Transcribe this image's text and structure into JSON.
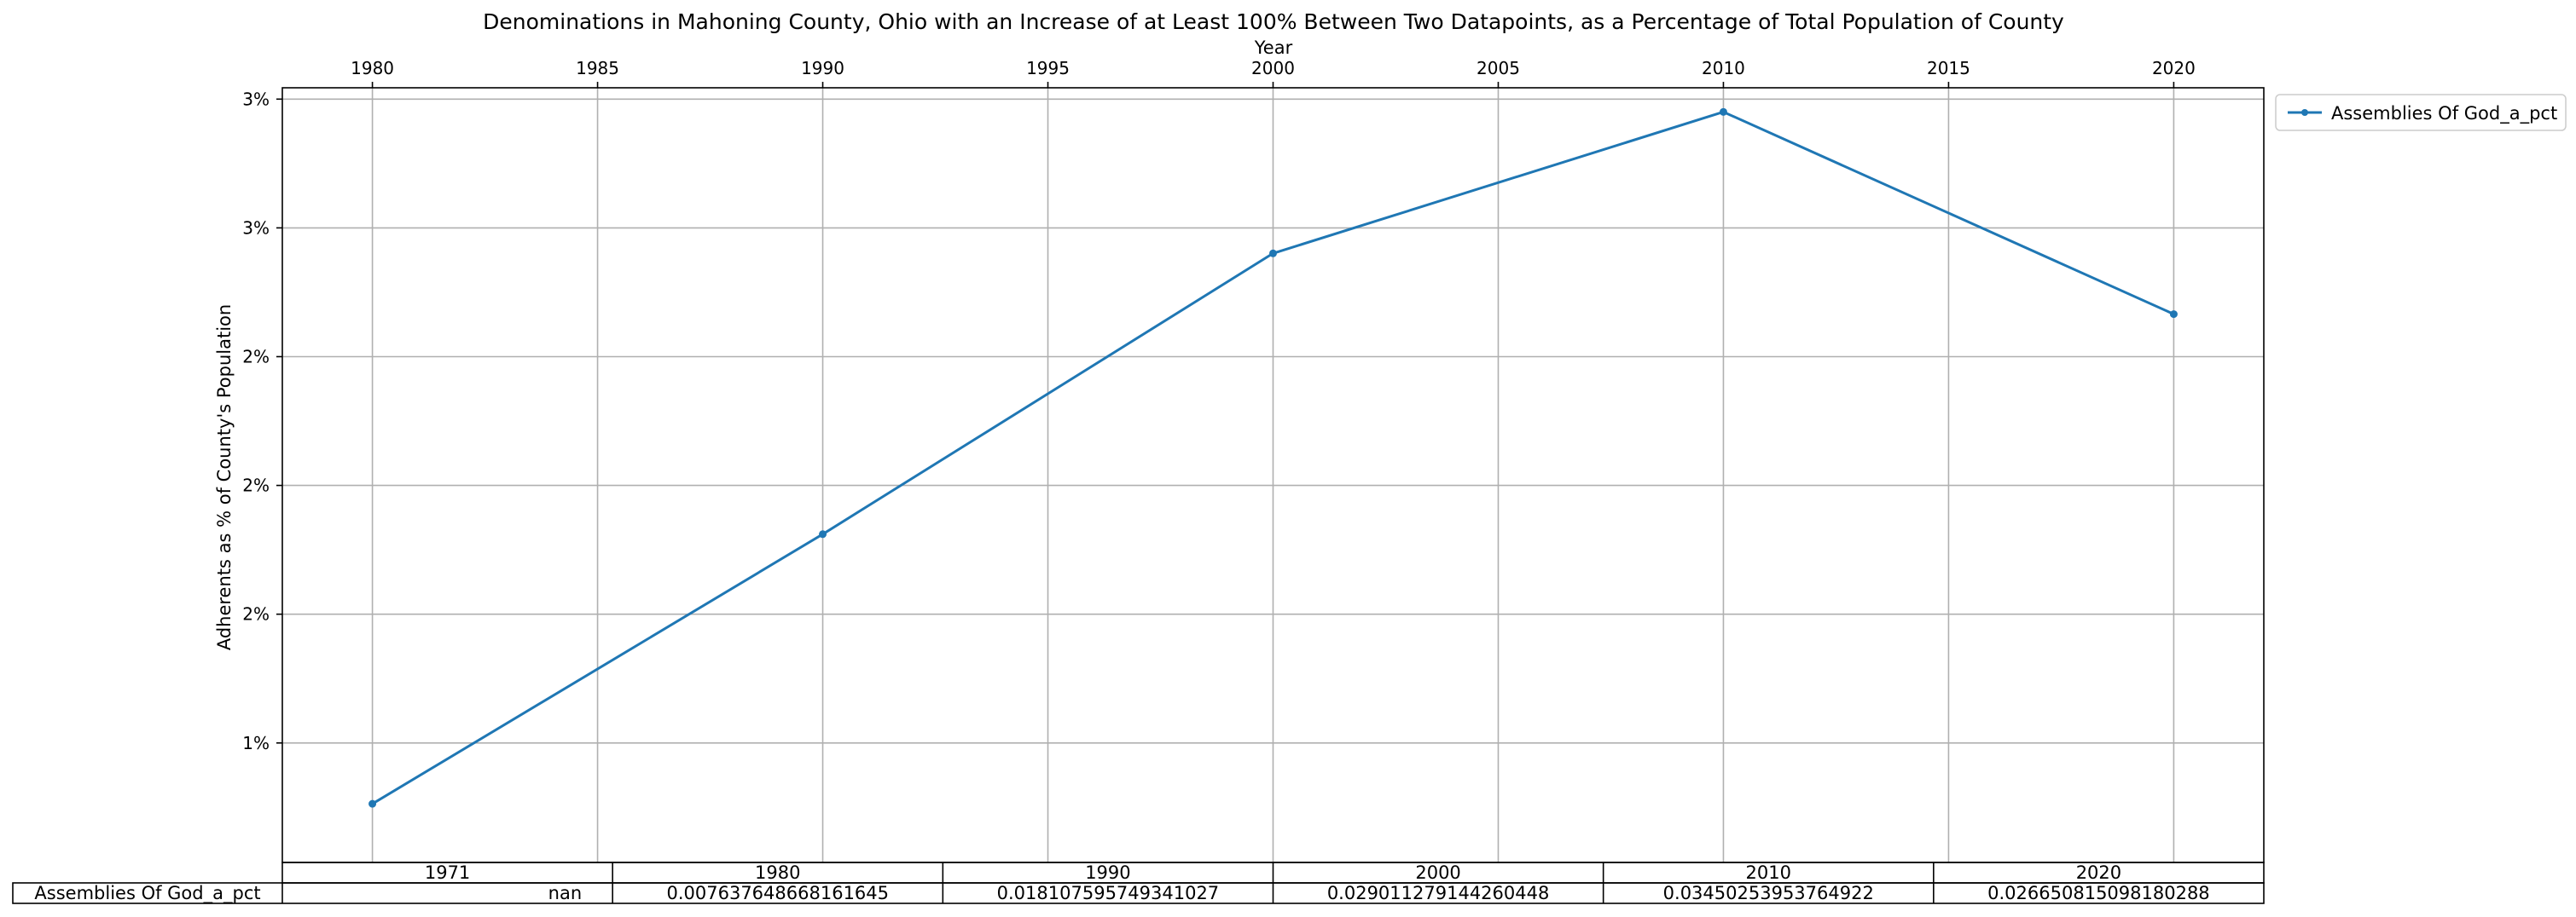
{
  "chart_data": {
    "type": "line",
    "title": "Denominations in Mahoning County, Ohio with an Increase of at Least 100% Between Two Datapoints, as a Percentage of Total Population of County",
    "xlabel": "Year",
    "ylabel": "Adherents as % of County's Population",
    "x_axis_position": "top",
    "x_ticks": [
      1980,
      1985,
      1990,
      1995,
      2000,
      2005,
      2010,
      2015,
      2020
    ],
    "xlim": [
      1978,
      2022
    ],
    "y_ticks": [
      0.01,
      0.015,
      0.02,
      0.025,
      0.03,
      0.035
    ],
    "y_tick_labels": [
      "1%",
      "2%",
      "2%",
      "2%",
      "3%",
      "3%"
    ],
    "ylim": [
      0.00536,
      0.03544
    ],
    "grid": true,
    "legend_placement": "outside upper right",
    "series": [
      {
        "name": "Assemblies Of God_a_pct",
        "color": "#1f77b4",
        "marker": "dot",
        "x": [
          1980,
          1990,
          2000,
          2010,
          2020
        ],
        "y": [
          0.007637648668161,
          0.018107595749341,
          0.02901127914426,
          0.034502539537649,
          0.02665081509818
        ]
      }
    ],
    "table": {
      "row_label": "Assemblies Of God_a_pct",
      "columns": [
        "1971",
        "1980",
        "1990",
        "2000",
        "2010",
        "2020"
      ],
      "cells": [
        "nan",
        "0.007637648668161645",
        "0.018107595749341027",
        "0.029011279144260448",
        "0.03450253953764922",
        "0.026650815098180288"
      ]
    }
  }
}
